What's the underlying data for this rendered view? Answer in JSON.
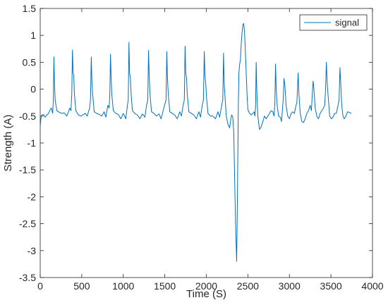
{
  "chart_data": {
    "type": "line",
    "title": "",
    "xlabel": "Time (S)",
    "ylabel": "Strength (A)",
    "xlim": [
      0,
      4000
    ],
    "ylim": [
      -3.5,
      1.5
    ],
    "xticks": [
      0,
      500,
      1000,
      1500,
      2000,
      2500,
      3000,
      3500,
      4000
    ],
    "yticks": [
      1.5,
      1,
      0.5,
      0,
      -0.5,
      -1,
      -1.5,
      -2,
      -2.5,
      -3,
      -3.5
    ],
    "grid": false,
    "legend_position": "top-right",
    "line_color": "#0072bd",
    "series": [
      {
        "name": "signal",
        "color": "#0072bd",
        "points": [
          [
            0,
            -0.7
          ],
          [
            10,
            -0.52
          ],
          [
            20,
            -0.48
          ],
          [
            40,
            -0.47
          ],
          [
            60,
            -0.52
          ],
          [
            80,
            -0.48
          ],
          [
            100,
            -0.45
          ],
          [
            120,
            -0.38
          ],
          [
            135,
            -0.35
          ],
          [
            150,
            -0.45
          ],
          [
            158,
            -0.2
          ],
          [
            165,
            0.6
          ],
          [
            172,
            0.1
          ],
          [
            180,
            -0.2
          ],
          [
            200,
            -0.4
          ],
          [
            230,
            -0.43
          ],
          [
            260,
            -0.45
          ],
          [
            290,
            -0.44
          ],
          [
            320,
            -0.5
          ],
          [
            340,
            -0.42
          ],
          [
            355,
            -0.35
          ],
          [
            370,
            -0.4
          ],
          [
            380,
            -0.1
          ],
          [
            388,
            0.73
          ],
          [
            396,
            0.3
          ],
          [
            404,
            0.25
          ],
          [
            412,
            -0.1
          ],
          [
            430,
            -0.4
          ],
          [
            460,
            -0.48
          ],
          [
            490,
            -0.5
          ],
          [
            520,
            -0.47
          ],
          [
            545,
            -0.45
          ],
          [
            565,
            -0.5
          ],
          [
            585,
            -0.4
          ],
          [
            595,
            -0.35
          ],
          [
            605,
            -0.2
          ],
          [
            615,
            0.6
          ],
          [
            622,
            0.15
          ],
          [
            632,
            -0.1
          ],
          [
            650,
            -0.42
          ],
          [
            680,
            -0.45
          ],
          [
            710,
            -0.47
          ],
          [
            740,
            -0.5
          ],
          [
            770,
            -0.42
          ],
          [
            790,
            -0.52
          ],
          [
            815,
            -0.3
          ],
          [
            830,
            -0.35
          ],
          [
            838,
            -0.1
          ],
          [
            846,
            0.65
          ],
          [
            854,
            0.2
          ],
          [
            862,
            -0.1
          ],
          [
            880,
            -0.4
          ],
          [
            910,
            -0.45
          ],
          [
            940,
            -0.47
          ],
          [
            970,
            -0.55
          ],
          [
            1000,
            -0.45
          ],
          [
            1030,
            -0.55
          ],
          [
            1050,
            -0.3
          ],
          [
            1060,
            -0.2
          ],
          [
            1068,
            0.87
          ],
          [
            1076,
            0.3
          ],
          [
            1086,
            0.2
          ],
          [
            1095,
            -0.1
          ],
          [
            1110,
            -0.4
          ],
          [
            1140,
            -0.45
          ],
          [
            1170,
            -0.48
          ],
          [
            1200,
            -0.55
          ],
          [
            1230,
            -0.46
          ],
          [
            1260,
            -0.52
          ],
          [
            1280,
            -0.3
          ],
          [
            1295,
            -0.2
          ],
          [
            1304,
            0.72
          ],
          [
            1312,
            0.25
          ],
          [
            1322,
            -0.1
          ],
          [
            1340,
            -0.42
          ],
          [
            1370,
            -0.45
          ],
          [
            1400,
            -0.5
          ],
          [
            1430,
            -0.46
          ],
          [
            1455,
            -0.55
          ],
          [
            1480,
            -0.4
          ],
          [
            1500,
            -0.28
          ],
          [
            1515,
            -0.2
          ],
          [
            1524,
            0.7
          ],
          [
            1532,
            0.2
          ],
          [
            1542,
            -0.1
          ],
          [
            1560,
            -0.42
          ],
          [
            1590,
            -0.45
          ],
          [
            1620,
            -0.48
          ],
          [
            1650,
            -0.55
          ],
          [
            1680,
            -0.42
          ],
          [
            1700,
            -0.5
          ],
          [
            1720,
            -0.3
          ],
          [
            1735,
            -0.2
          ],
          [
            1744,
            0.8
          ],
          [
            1752,
            0.3
          ],
          [
            1762,
            0.2
          ],
          [
            1770,
            -0.1
          ],
          [
            1790,
            -0.42
          ],
          [
            1820,
            -0.45
          ],
          [
            1850,
            -0.48
          ],
          [
            1880,
            -0.55
          ],
          [
            1910,
            -0.42
          ],
          [
            1930,
            -0.52
          ],
          [
            1950,
            -0.3
          ],
          [
            1965,
            -0.2
          ],
          [
            1975,
            0.7
          ],
          [
            1983,
            0.25
          ],
          [
            1993,
            0.1
          ],
          [
            2002,
            -0.15
          ],
          [
            2020,
            -0.45
          ],
          [
            2050,
            -0.5
          ],
          [
            2080,
            -0.5
          ],
          [
            2110,
            -0.55
          ],
          [
            2140,
            -0.42
          ],
          [
            2160,
            -0.52
          ],
          [
            2185,
            -0.3
          ],
          [
            2198,
            -0.2
          ],
          [
            2207,
            0.67
          ],
          [
            2215,
            0.1
          ],
          [
            2225,
            -0.15
          ],
          [
            2240,
            -0.5
          ],
          [
            2260,
            -0.65
          ],
          [
            2280,
            -0.72
          ],
          [
            2295,
            -0.55
          ],
          [
            2305,
            -0.48
          ],
          [
            2318,
            -0.52
          ],
          [
            2330,
            -0.8
          ],
          [
            2345,
            -2.0
          ],
          [
            2355,
            -2.7
          ],
          [
            2365,
            -3.2
          ],
          [
            2370,
            -2.6
          ],
          [
            2378,
            -1.4
          ],
          [
            2385,
            -0.3
          ],
          [
            2392,
            0.3
          ],
          [
            2400,
            0.45
          ],
          [
            2410,
            0.55
          ],
          [
            2420,
            0.85
          ],
          [
            2430,
            1.05
          ],
          [
            2440,
            1.2
          ],
          [
            2450,
            1.22
          ],
          [
            2460,
            1.05
          ],
          [
            2470,
            0.7
          ],
          [
            2480,
            0.3
          ],
          [
            2490,
            -0.1
          ],
          [
            2500,
            -0.38
          ],
          [
            2520,
            -0.45
          ],
          [
            2540,
            -0.48
          ],
          [
            2560,
            -0.45
          ],
          [
            2575,
            -0.42
          ],
          [
            2585,
            -0.5
          ],
          [
            2593,
            -0.3
          ],
          [
            2600,
            0.5
          ],
          [
            2608,
            -0.05
          ],
          [
            2620,
            -0.5
          ],
          [
            2640,
            -0.75
          ],
          [
            2660,
            -0.7
          ],
          [
            2680,
            -0.6
          ],
          [
            2700,
            -0.5
          ],
          [
            2720,
            -0.55
          ],
          [
            2740,
            -0.5
          ],
          [
            2760,
            -0.45
          ],
          [
            2780,
            -0.4
          ],
          [
            2800,
            -0.42
          ],
          [
            2815,
            -0.5
          ],
          [
            2825,
            -0.25
          ],
          [
            2833,
            0.47
          ],
          [
            2841,
            0.0
          ],
          [
            2852,
            -0.3
          ],
          [
            2870,
            -0.5
          ],
          [
            2890,
            -0.52
          ],
          [
            2905,
            -0.6
          ],
          [
            2915,
            -0.4
          ],
          [
            2925,
            -0.2
          ],
          [
            2935,
            0.2
          ],
          [
            2945,
            0.08
          ],
          [
            2960,
            -0.3
          ],
          [
            2980,
            -0.5
          ],
          [
            3000,
            -0.55
          ],
          [
            3020,
            -0.45
          ],
          [
            3040,
            -0.42
          ],
          [
            3060,
            -0.45
          ],
          [
            3080,
            -0.3
          ],
          [
            3090,
            -0.25
          ],
          [
            3105,
            0.3
          ],
          [
            3115,
            -0.1
          ],
          [
            3130,
            -0.45
          ],
          [
            3150,
            -0.6
          ],
          [
            3170,
            -0.62
          ],
          [
            3190,
            -0.55
          ],
          [
            3210,
            -0.45
          ],
          [
            3230,
            -0.4
          ],
          [
            3250,
            -0.3
          ],
          [
            3265,
            -0.4
          ],
          [
            3275,
            -0.1
          ],
          [
            3285,
            0.15
          ],
          [
            3295,
            0.0
          ],
          [
            3310,
            -0.35
          ],
          [
            3330,
            -0.5
          ],
          [
            3350,
            -0.55
          ],
          [
            3370,
            -0.45
          ],
          [
            3390,
            -0.4
          ],
          [
            3410,
            -0.35
          ],
          [
            3425,
            -0.3
          ],
          [
            3435,
            0.0
          ],
          [
            3445,
            0.5
          ],
          [
            3455,
            0.1
          ],
          [
            3470,
            -0.2
          ],
          [
            3485,
            -0.5
          ],
          [
            3505,
            -0.55
          ],
          [
            3525,
            -0.52
          ],
          [
            3545,
            -0.45
          ],
          [
            3565,
            -0.45
          ],
          [
            3585,
            -0.3
          ],
          [
            3598,
            -0.2
          ],
          [
            3608,
            0.4
          ],
          [
            3618,
            0.1
          ],
          [
            3630,
            -0.3
          ],
          [
            3645,
            -0.5
          ],
          [
            3660,
            -0.55
          ],
          [
            3680,
            -0.5
          ],
          [
            3700,
            -0.42
          ],
          [
            3720,
            -0.43
          ],
          [
            3745,
            -0.45
          ]
        ]
      }
    ]
  }
}
